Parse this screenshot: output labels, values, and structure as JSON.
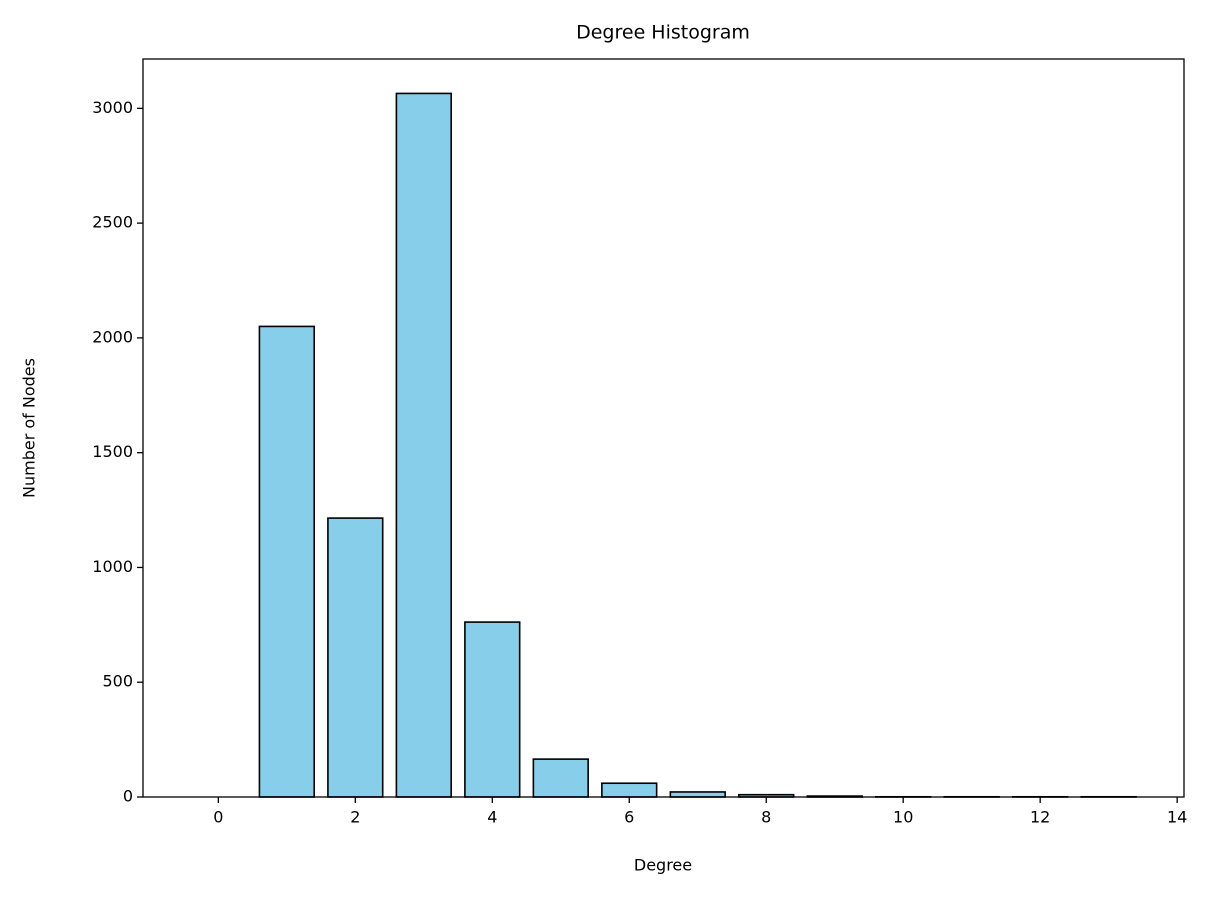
{
  "chart_data": {
    "type": "bar",
    "title": "Degree Histogram",
    "x_label": "Degree",
    "y_label": "Number of Nodes",
    "x": [
      0,
      1,
      2,
      3,
      4,
      5,
      6,
      7,
      8,
      9,
      10,
      11,
      12,
      13
    ],
    "values": [
      0,
      2050,
      1215,
      3065,
      762,
      165,
      60,
      22,
      10,
      4,
      1,
      1,
      1,
      1
    ],
    "color": "#87ceeb",
    "edge_color": "#000000",
    "xlim": [
      -1.1,
      14.1
    ],
    "xticks": [
      0,
      2,
      4,
      6,
      8,
      10,
      12,
      14
    ],
    "ylim": [
      0,
      3215
    ],
    "yticks": [
      0,
      500,
      1000,
      1500,
      2000,
      2500,
      3000
    ],
    "grid": false
  }
}
